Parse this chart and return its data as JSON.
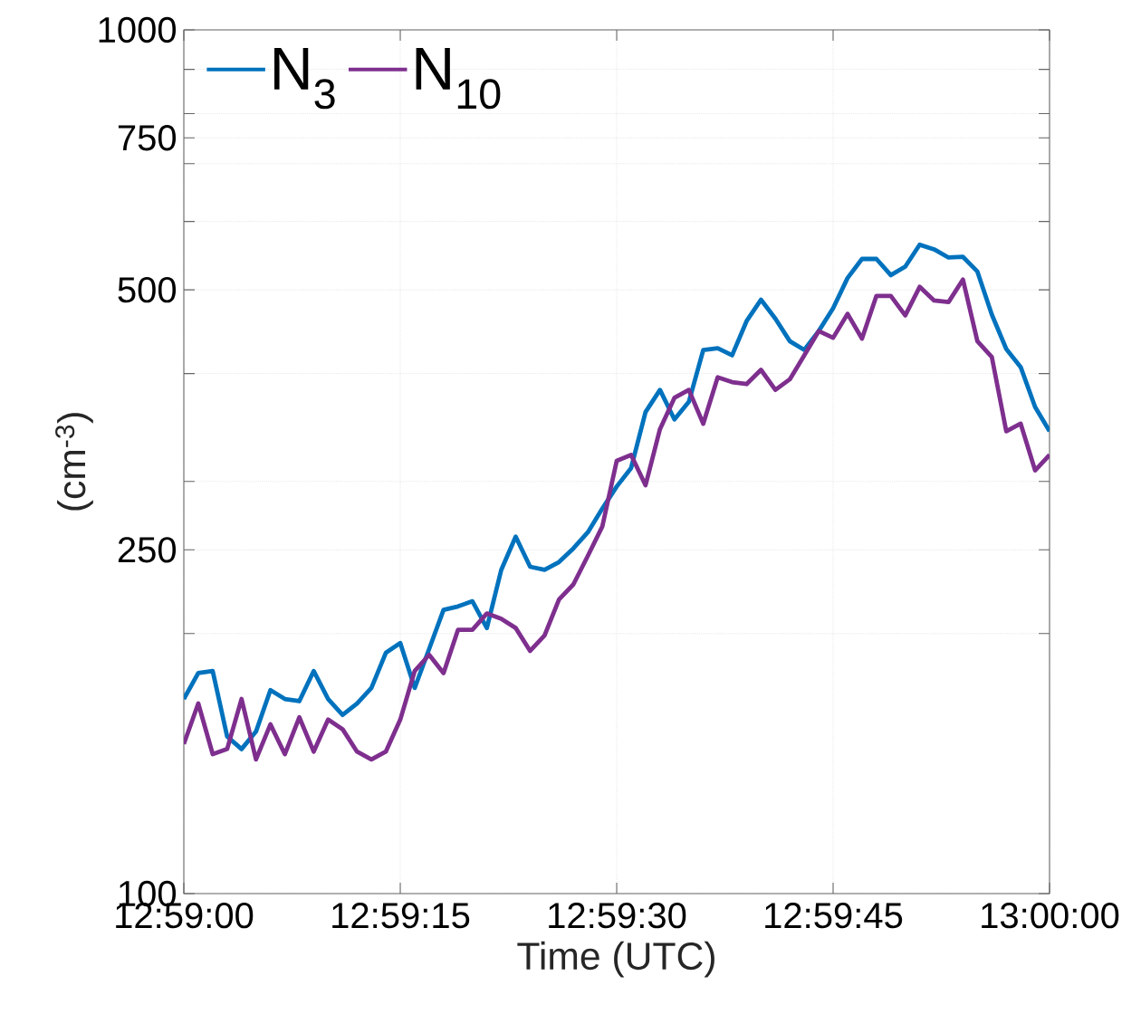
{
  "chart_data": {
    "type": "line",
    "xlabel": "Time (UTC)",
    "ylabel": "(cm$^{-3}$)",
    "x": [
      12.983333,
      12.983611,
      12.983889,
      12.984167,
      12.984444,
      12.984722,
      12.985,
      12.985278,
      12.985556,
      12.985833,
      12.986111,
      12.986389,
      12.986667,
      12.986944,
      12.987222,
      12.9875,
      12.987778,
      12.988056,
      12.988333,
      12.988611,
      12.988889,
      12.989167,
      12.989444,
      12.989722,
      12.99,
      12.990278,
      12.990556,
      12.990833,
      12.991111,
      12.991389,
      12.991667,
      12.991944,
      12.992222,
      12.9925,
      12.992778,
      12.993056,
      12.993333,
      12.993611,
      12.993889,
      12.994167,
      12.994444,
      12.994722,
      12.995,
      12.995278,
      12.995556,
      12.995833,
      12.996111,
      12.996389,
      12.996667,
      12.996944,
      12.997222,
      12.9975,
      12.997778,
      12.998056,
      12.998333,
      12.998611,
      12.998889,
      12.999167,
      12.999444,
      12.999722,
      13.0
    ],
    "series": [
      {
        "name": "N$_{3}$",
        "color": "#0072bd",
        "values": [
          168,
          180,
          181,
          152,
          147,
          154,
          172,
          168,
          167,
          181,
          168,
          161,
          166,
          173,
          190,
          195,
          173,
          192,
          213,
          215,
          218,
          203,
          237,
          259,
          239,
          237,
          242,
          251,
          262,
          279,
          296,
          311,
          361,
          383,
          354,
          371,
          426,
          428,
          420,
          460,
          487,
          463,
          436,
          426,
          448,
          476,
          516,
          543,
          543,
          520,
          532,
          564,
          557,
          545,
          546,
          525,
          468,
          427,
          407,
          366,
          343
        ]
      },
      {
        "name": "N$_{10}$",
        "color": "#7e2f8e",
        "values": [
          149,
          166,
          145,
          147,
          168,
          143,
          157,
          145,
          160,
          146,
          159,
          155,
          146,
          143,
          146,
          159,
          181,
          189,
          180,
          202,
          202,
          211,
          208,
          203,
          191,
          199,
          219,
          228,
          246,
          266,
          317,
          322,
          297,
          345,
          375,
          383,
          350,
          396,
          391,
          389,
          404,
          383,
          394,
          420,
          448,
          440,
          469,
          439,
          492,
          492,
          467,
          504,
          486,
          484,
          514,
          436,
          418,
          343,
          350,
          309,
          322
        ]
      }
    ],
    "xlim": [
      12.983333,
      13.0
    ],
    "xticks": [
      {
        "value": 12.983333,
        "label": "12:59:00"
      },
      {
        "value": 12.9875,
        "label": "12:59:15"
      },
      {
        "value": 12.991667,
        "label": "12:59:30"
      },
      {
        "value": 12.995833,
        "label": "12:59:45"
      },
      {
        "value": 13.0,
        "label": "13:00:00"
      }
    ],
    "ylim": [
      100,
      1000
    ],
    "yticks": [
      100,
      {
        "value": 200,
        "label": null
      },
      250,
      {
        "value": 300,
        "label": null
      },
      {
        "value": 400,
        "label": null
      },
      500,
      {
        "value": 600,
        "label": null
      },
      {
        "value": 700,
        "label": null
      },
      750,
      {
        "value": 800,
        "label": null
      },
      {
        "value": 900,
        "label": null
      },
      1000
    ],
    "log": "y",
    "grid": true,
    "legend": "top left",
    "line_style": "solid",
    "marker": "none"
  }
}
